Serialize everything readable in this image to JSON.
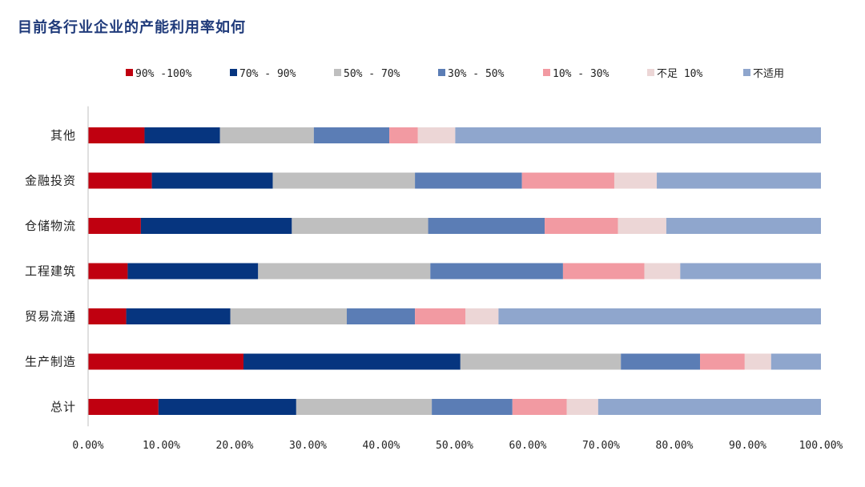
{
  "chart_data": {
    "type": "bar",
    "orientation": "horizontal",
    "stacked": true,
    "title": "目前各行业企业的产能利用率如何",
    "categories": [
      "其他",
      "金融投资",
      "仓储物流",
      "工程建筑",
      "贸易流通",
      "生产制造",
      "总计"
    ],
    "series": [
      {
        "name": "90% -100%",
        "color": "#c00010",
        "values": [
          7.7,
          8.7,
          7.2,
          5.4,
          5.2,
          21.2,
          9.6
        ]
      },
      {
        "name": "70% - 90%",
        "color": "#06357f",
        "values": [
          10.3,
          16.5,
          20.6,
          17.8,
          14.2,
          29.6,
          18.8
        ]
      },
      {
        "name": "50% - 70%",
        "color": "#bfbfbf",
        "values": [
          12.8,
          19.4,
          18.6,
          23.5,
          15.9,
          21.9,
          18.5
        ]
      },
      {
        "name": "30% - 50%",
        "color": "#5b7db5",
        "values": [
          10.3,
          14.6,
          15.9,
          18.1,
          9.3,
          10.8,
          11.0
        ]
      },
      {
        "name": "10% - 30%",
        "color": "#f29aa2",
        "values": [
          3.9,
          12.6,
          10.0,
          11.1,
          6.9,
          6.1,
          7.4
        ]
      },
      {
        "name": "不足 10%",
        "color": "#ecd6d6",
        "values": [
          5.1,
          5.8,
          6.6,
          4.9,
          4.5,
          3.6,
          4.3
        ]
      },
      {
        "name": "不适用",
        "color": "#8fa6cd",
        "values": [
          49.9,
          22.4,
          21.1,
          19.2,
          44.0,
          6.8,
          30.4
        ]
      }
    ],
    "xlim": [
      0,
      100
    ],
    "xticks": [
      "0.00%",
      "10.00%",
      "20.00%",
      "30.00%",
      "40.00%",
      "50.00%",
      "60.00%",
      "70.00%",
      "80.00%",
      "90.00%",
      "100.00%"
    ],
    "legend_position": "top",
    "grid": false
  }
}
